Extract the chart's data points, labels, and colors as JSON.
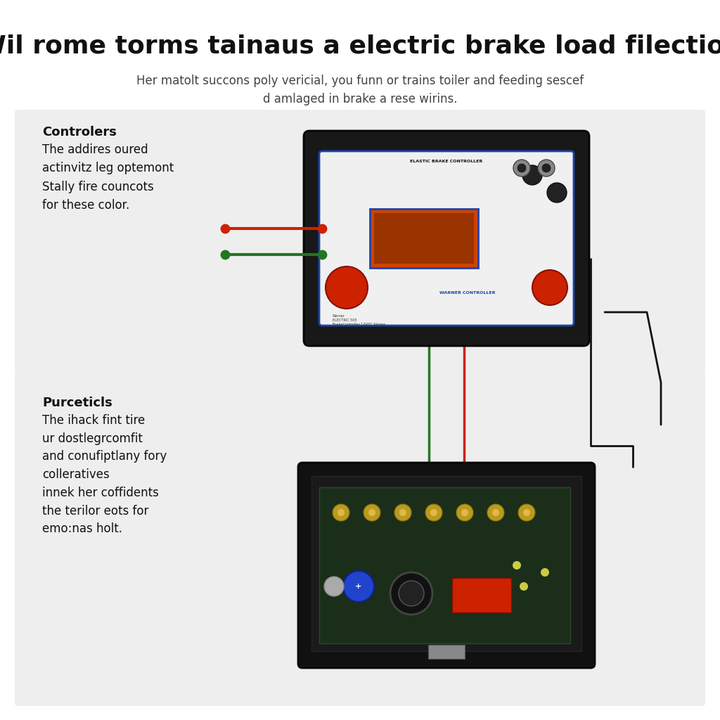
{
  "title": "Wil rome torms tainaus a electric brake load filection",
  "subtitle": "Her matolt succons poly vericial, you funn or trains toiler and feeding sescef\nd amlaged in brake a rese wirins.",
  "title_fontsize": 26,
  "subtitle_fontsize": 12,
  "bg_color": "#ffffff",
  "panel_bg": "#eeeeee",
  "section1_header": "Controlers",
  "section1_text": "The addires oured\nactinvitz leg optemont\nStally fire councots\nfor these color.",
  "section2_header": "Purceticls",
  "section2_text": "The ihack fint tire\nur dostlegrcomfit\nand conufiptlany fory\ncolleratives\ninnek her coffidents\nthe terilor eots for\nemo:nas holt.",
  "header_fontsize": 13,
  "body_fontsize": 12,
  "wire_red": "#cc2200",
  "wire_green": "#227722",
  "wire_black": "#111111"
}
